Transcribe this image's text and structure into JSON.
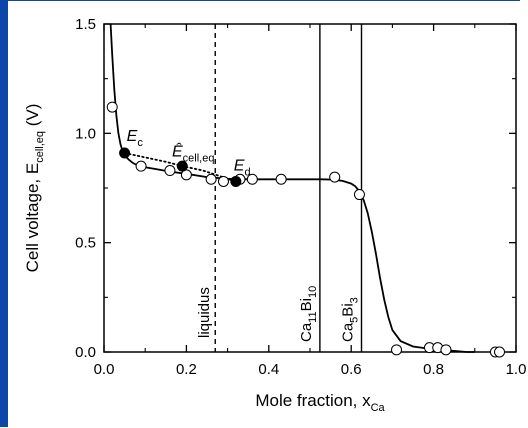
{
  "frame_color": "#0b46a8",
  "chart_data": {
    "type": "scatter",
    "xlabel": "Mole fraction, x",
    "xlabel_sub": "Ca",
    "ylabel": "Cell voltage, E",
    "ylabel_sub": "cell,eq",
    "ylabel_unit": "(V)",
    "xlim": [
      0.0,
      1.0
    ],
    "ylim": [
      0.0,
      1.5
    ],
    "xticks": [
      "0.0",
      "0.2",
      "0.4",
      "0.6",
      "0.8",
      "1.0"
    ],
    "xtick_values": [
      0.0,
      0.2,
      0.4,
      0.6,
      0.8,
      1.0
    ],
    "yticks": [
      "0.0",
      "0.5",
      "1.0",
      "1.5"
    ],
    "ytick_values": [
      0.0,
      0.5,
      1.0,
      1.5
    ],
    "series": [
      {
        "marker": "open-circle",
        "x": [
          0.02,
          0.09,
          0.16,
          0.2,
          0.26,
          0.29,
          0.33,
          0.36,
          0.43,
          0.56,
          0.62,
          0.71,
          0.79,
          0.81,
          0.83,
          0.95,
          0.96
        ],
        "y": [
          1.12,
          0.85,
          0.83,
          0.81,
          0.79,
          0.78,
          0.79,
          0.79,
          0.79,
          0.8,
          0.72,
          0.01,
          0.02,
          0.02,
          0.01,
          0.0,
          0.0
        ]
      },
      {
        "marker": "filled-circle",
        "x": [
          0.05,
          0.19,
          0.32
        ],
        "y": [
          0.91,
          0.85,
          0.78
        ]
      }
    ],
    "fit_curve": {
      "style": "solid",
      "x": [
        0.016,
        0.02,
        0.025,
        0.03,
        0.035,
        0.04,
        0.045,
        0.05,
        0.06,
        0.07,
        0.08,
        0.1,
        0.13,
        0.16,
        0.2,
        0.25,
        0.3,
        0.35,
        0.4,
        0.45,
        0.5,
        0.53,
        0.56,
        0.58,
        0.6,
        0.61,
        0.62,
        0.63,
        0.64,
        0.65,
        0.66,
        0.67,
        0.68,
        0.69,
        0.7,
        0.72,
        0.75,
        0.8,
        0.85,
        0.88,
        0.9
      ],
      "y": [
        1.5,
        1.36,
        1.2,
        1.08,
        1.0,
        0.95,
        0.92,
        0.9,
        0.88,
        0.865,
        0.855,
        0.845,
        0.835,
        0.825,
        0.815,
        0.8,
        0.792,
        0.79,
        0.79,
        0.79,
        0.79,
        0.79,
        0.788,
        0.782,
        0.77,
        0.758,
        0.735,
        0.695,
        0.635,
        0.55,
        0.45,
        0.34,
        0.24,
        0.16,
        0.1,
        0.05,
        0.025,
        0.012,
        0.005,
        0.0,
        0.0
      ]
    },
    "dotted_curve": {
      "style": "dotted",
      "x": [
        0.05,
        0.1,
        0.15,
        0.19,
        0.24,
        0.28,
        0.32
      ],
      "y": [
        0.91,
        0.89,
        0.87,
        0.85,
        0.83,
        0.805,
        0.78
      ]
    },
    "vertical_lines": [
      {
        "x": 0.27,
        "style": "dashed",
        "label": "liquidus"
      },
      {
        "x": 0.524,
        "style": "solid",
        "label_parts": [
          "Ca",
          "11",
          "Bi",
          "10"
        ]
      },
      {
        "x": 0.625,
        "style": "solid",
        "label_parts": [
          "Ca",
          "5",
          "Bi",
          "3"
        ]
      }
    ],
    "annotations": [
      {
        "text": "E",
        "sub": "c",
        "x": 0.055,
        "y": 0.965
      },
      {
        "text": "Ê",
        "sub": "cell,eq",
        "x": 0.165,
        "y": 0.895
      },
      {
        "text": "E",
        "sub": "d",
        "x": 0.315,
        "y": 0.83
      }
    ]
  }
}
